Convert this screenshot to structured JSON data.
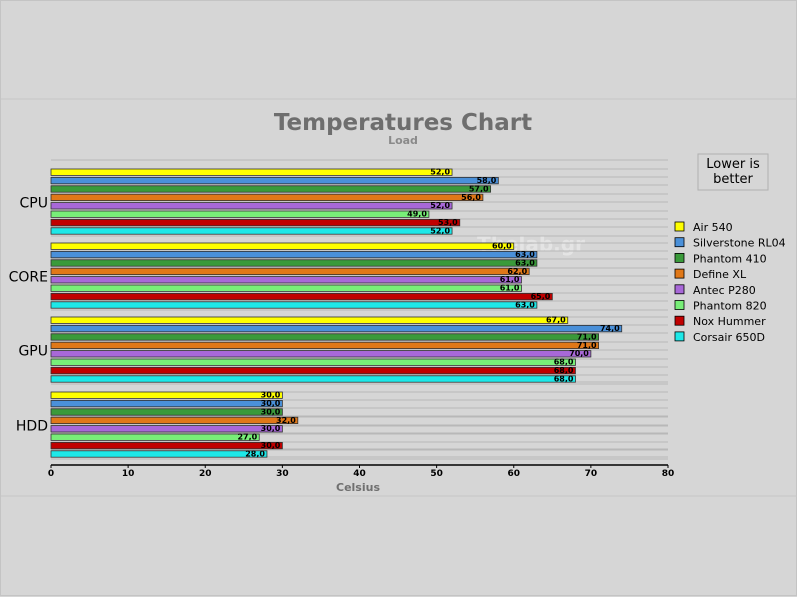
{
  "chart_data": {
    "type": "bar",
    "orientation": "horizontal",
    "title": "Temperatures Chart",
    "subtitle": "Load",
    "xlabel": "Celsius",
    "xlim": [
      0,
      80
    ],
    "xticks": [
      "0",
      "10",
      "20",
      "30",
      "40",
      "50",
      "60",
      "70",
      "80"
    ],
    "categories": [
      "CPU",
      "CORE",
      "GPU",
      "HDD"
    ],
    "series": [
      {
        "name": "Air 540",
        "color": "#ffff00",
        "values": [
          52.0,
          60.0,
          67.0,
          30.0
        ],
        "labels": [
          "52,0",
          "60,0",
          "67,0",
          "30,0"
        ]
      },
      {
        "name": "Silverstone RL04",
        "color": "#4a90d9",
        "values": [
          58.0,
          63.0,
          74.0,
          30.0
        ],
        "labels": [
          "58,0",
          "63,0",
          "74,0",
          "30,0"
        ]
      },
      {
        "name": "Phantom 410",
        "color": "#3a9a3a",
        "values": [
          57.0,
          63.0,
          71.0,
          30.0
        ],
        "labels": [
          "57,0",
          "63,0",
          "71,0",
          "30,0"
        ]
      },
      {
        "name": "Define XL",
        "color": "#e07818",
        "values": [
          56.0,
          62.0,
          71.0,
          32.0
        ],
        "labels": [
          "56,0",
          "62,0",
          "71,0",
          "32,0"
        ]
      },
      {
        "name": "Antec P280",
        "color": "#a868d8",
        "values": [
          52.0,
          61.0,
          70.0,
          30.0
        ],
        "labels": [
          "52,0",
          "61,0",
          "70,0",
          "30,0"
        ]
      },
      {
        "name": "Phantom 820",
        "color": "#78ee78",
        "values": [
          49.0,
          61.0,
          68.0,
          27.0
        ],
        "labels": [
          "49,0",
          "61,0",
          "68,0",
          "27,0"
        ]
      },
      {
        "name": "Nox Hummer",
        "color": "#c00000",
        "values": [
          53.0,
          65.0,
          68.0,
          30.0
        ],
        "labels": [
          "53,0",
          "65,0",
          "68,0",
          "30,0"
        ]
      },
      {
        "name": "Corsair 650D",
        "color": "#1ee8e8",
        "values": [
          52.0,
          63.0,
          68.0,
          28.0
        ],
        "labels": [
          "52,0",
          "63,0",
          "68,0",
          "28,0"
        ]
      }
    ],
    "legend_position": "right",
    "note": [
      "Lower is",
      "better"
    ],
    "watermark": "Thelab.gr",
    "grid": true
  }
}
